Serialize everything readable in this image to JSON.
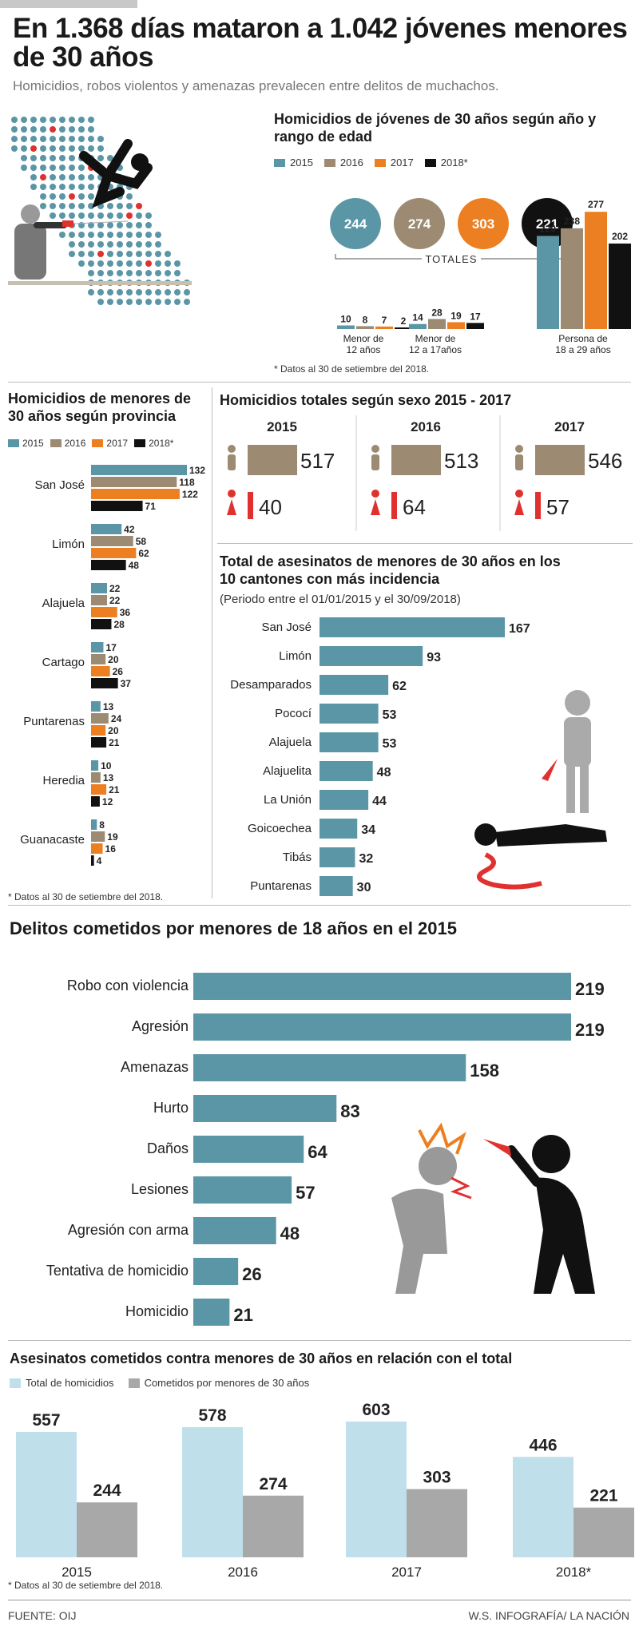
{
  "header": {
    "title": "En 1.368 días mataron a 1.042 jóvenes menores de 30 años",
    "subtitle": "Homicidios, robos violentos y amenazas prevalecen entre delitos de muchachos."
  },
  "colors": {
    "y2015": "#5b96a6",
    "y2016": "#9c8b72",
    "y2017": "#ec7f22",
    "y2018": "#111111",
    "teal": "#5b96a6",
    "red": "#e0312f",
    "lightblue": "#bfe0ea",
    "gray": "#a8a8a8"
  },
  "legend_years": [
    "2015",
    "2016",
    "2017",
    "2018*"
  ],
  "chart_data": [
    {
      "id": "age_group",
      "type": "bar",
      "title": "Homicidios de jóvenes de 30 años según año y rango de edad",
      "categories": [
        "Menor de 12 años",
        "Menor de 12 a 17años",
        "Persona de 18 a 29 años"
      ],
      "series": [
        {
          "name": "2015",
          "values": [
            10,
            14,
            220
          ]
        },
        {
          "name": "2016",
          "values": [
            8,
            28,
            238
          ]
        },
        {
          "name": "2017",
          "values": [
            7,
            19,
            277
          ]
        },
        {
          "name": "2018*",
          "values": [
            2,
            17,
            202
          ]
        }
      ],
      "totals_label": "TOTALES",
      "totals": [
        244,
        274,
        303,
        221
      ],
      "note": "Datos al 30 de setiembre del 2018."
    },
    {
      "id": "province",
      "type": "bar",
      "title": "Homicidios de menores de 30 años según provincia",
      "categories": [
        "San José",
        "Limón",
        "Alajuela",
        "Cartago",
        "Puntarenas",
        "Heredia",
        "Guanacaste"
      ],
      "series": [
        {
          "name": "2015",
          "values": [
            132,
            42,
            22,
            17,
            13,
            10,
            8
          ]
        },
        {
          "name": "2016",
          "values": [
            118,
            58,
            22,
            20,
            24,
            13,
            19
          ]
        },
        {
          "name": "2017",
          "values": [
            122,
            62,
            36,
            26,
            20,
            21,
            16
          ]
        },
        {
          "name": "2018*",
          "values": [
            71,
            48,
            28,
            37,
            21,
            12,
            4
          ]
        }
      ],
      "xlim": [
        0,
        132
      ],
      "note": "Datos al 30 de setiembre del 2018."
    },
    {
      "id": "sex",
      "type": "bar",
      "title": "Homicidios totales según sexo 2015 - 2017",
      "categories": [
        "2015",
        "2016",
        "2017"
      ],
      "series": [
        {
          "name": "Hombres",
          "values": [
            517,
            513,
            546
          ]
        },
        {
          "name": "Mujeres",
          "values": [
            40,
            64,
            57
          ]
        }
      ]
    },
    {
      "id": "cantons",
      "type": "bar",
      "title": "Total de asesinatos de menores de 30 años en los 10 cantones con más incidencia",
      "subtitle": "(Periodo entre el  01/01/2015 y el 30/09/2018)",
      "categories": [
        "San José",
        "Limón",
        "Desamparados",
        "Pococí",
        "Alajuela",
        "Alajuelita",
        "La Unión",
        "Goicoechea",
        "Tibás",
        "Puntarenas"
      ],
      "values": [
        167,
        93,
        62,
        53,
        53,
        48,
        44,
        34,
        32,
        30
      ],
      "xlim": [
        0,
        167
      ]
    },
    {
      "id": "crimes",
      "type": "bar",
      "title": "Delitos cometidos por menores de 18 años en el 2015",
      "categories": [
        "Robo con violencia",
        "Agresión",
        "Amenazas",
        "Hurto",
        "Daños",
        "Lesiones",
        "Agresión con arma",
        "Tentativa de homicidio",
        "Homicidio"
      ],
      "values": [
        219,
        219,
        158,
        83,
        64,
        57,
        48,
        26,
        21
      ],
      "xlim": [
        0,
        219
      ]
    },
    {
      "id": "relation",
      "type": "bar",
      "title": "Asesinatos cometidos contra menores de 30 años en relación con el total",
      "categories": [
        "2015",
        "2016",
        "2017",
        "2018*"
      ],
      "series": [
        {
          "name": "Total de homicidios",
          "values": [
            557,
            578,
            603,
            446
          ]
        },
        {
          "name": "Cometidos por menores de 30 años",
          "values": [
            244,
            274,
            303,
            221
          ]
        }
      ],
      "ylim": [
        0,
        603
      ],
      "note": "Datos al 30 de setiembre del 2018."
    }
  ],
  "footer": {
    "source": "FUENTE: OIJ",
    "credit": "W.S. INFOGRAFÍA/ LA NACIÓN"
  }
}
